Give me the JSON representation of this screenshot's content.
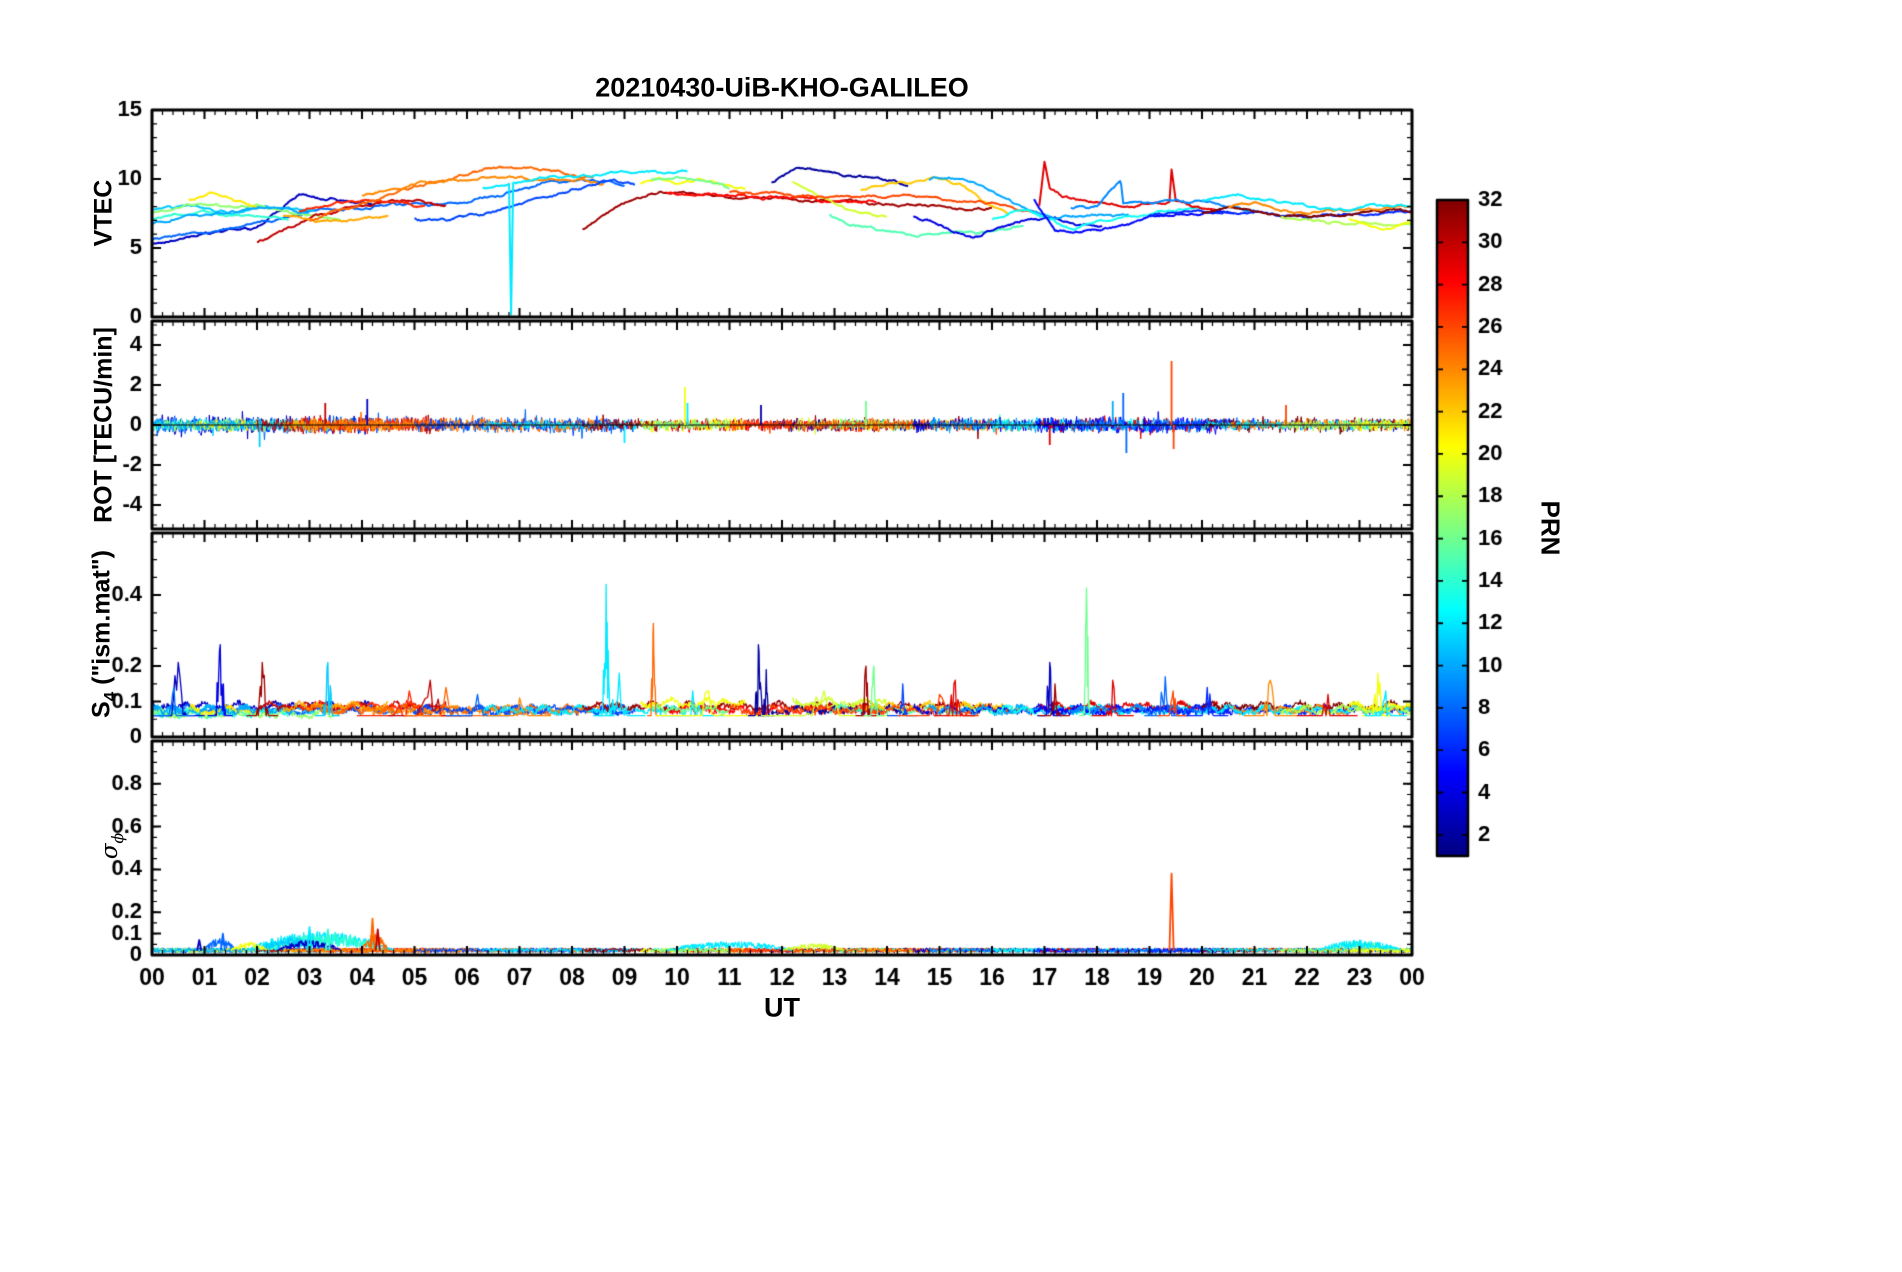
{
  "labels": {
    "s4_main": "S",
    "s4_sub": "4",
    "s4_rest": " (\"ism.mat\")",
    "sigma_main": "σ",
    "sigma_sub": "ϕ"
  },
  "chart_data": {
    "type": "line",
    "title": "20210430-UiB-KHO-GALILEO",
    "xlabel": "UT",
    "x_range_hours": [
      0,
      24
    ],
    "x_tick_labels": [
      "00",
      "01",
      "02",
      "03",
      "04",
      "05",
      "06",
      "07",
      "08",
      "09",
      "10",
      "11",
      "12",
      "13",
      "14",
      "15",
      "16",
      "17",
      "18",
      "19",
      "20",
      "21",
      "22",
      "23",
      "00"
    ],
    "colorbar": {
      "label": "PRN",
      "min": 1,
      "max": 32,
      "colormap": "jet",
      "ticks": [
        2,
        4,
        6,
        8,
        10,
        12,
        14,
        16,
        18,
        20,
        22,
        24,
        26,
        28,
        30,
        32
      ]
    },
    "panels": [
      {
        "id": "vtec",
        "ylabel": "VTEC",
        "ylim": [
          0,
          15
        ],
        "yticks": [
          0,
          5,
          10,
          15
        ],
        "yminor": 1
      },
      {
        "id": "rot",
        "ylabel": "ROT [TECU/min]",
        "ylim": [
          -5.2,
          5.2
        ],
        "yticks": [
          -4,
          -2,
          0,
          2,
          4
        ],
        "yminor": 0.5
      },
      {
        "id": "s4",
        "ylabel": "S4 (\"ism.mat\")",
        "ylim": [
          0,
          0.575
        ],
        "yticks": [
          0,
          0.1,
          0.2,
          0.4
        ],
        "yminor": 0.05
      },
      {
        "id": "sigma",
        "ylabel": "σϕ",
        "ylim": [
          0,
          1.0
        ],
        "yticks": [
          0,
          0.1,
          0.2,
          0.4,
          0.6,
          0.8
        ],
        "yminor": 0.05
      }
    ],
    "arcs": [
      {
        "prn": 3,
        "t": [
          0,
          1,
          2,
          2.8,
          3.5,
          4.2
        ],
        "v": [
          5.3,
          6.0,
          6.5,
          8.8,
          8.6,
          8.0
        ],
        "rot_amp": 0.45,
        "s4_base": 0.07
      },
      {
        "prn": 8,
        "t": [
          0,
          1.5,
          3,
          4.5,
          6,
          7.5,
          8.4,
          9
        ],
        "v": [
          5.6,
          6.4,
          7.6,
          8.1,
          8.3,
          9.7,
          10.0,
          9.4
        ],
        "rot_amp": 0.4,
        "s4_base": 0.06
      },
      {
        "prn": 11,
        "t": [
          0,
          0.7,
          1.5,
          2.3,
          3.1
        ],
        "v": [
          7.8,
          8.0,
          7.6,
          8.0,
          7.7
        ],
        "rot_amp": 0.3,
        "s4_base": 0.06
      },
      {
        "prn": 14,
        "t": [
          0,
          1,
          2,
          2.6
        ],
        "v": [
          7.2,
          7.6,
          7.3,
          7.0
        ],
        "rot_amp": 0.3,
        "s4_base": 0.05
      },
      {
        "prn": 17,
        "t": [
          0,
          1,
          2,
          3,
          3.6
        ],
        "v": [
          7.6,
          8.2,
          8.0,
          7.4,
          7.0
        ],
        "rot_amp": 0.3,
        "s4_base": 0.05
      },
      {
        "prn": 21,
        "t": [
          0.7,
          1.1,
          1.5,
          2.0
        ],
        "v": [
          8.5,
          9.0,
          8.5,
          8.0
        ],
        "rot_amp": 0.3,
        "s4_base": 0.06
      },
      {
        "prn": 10,
        "t": [
          0,
          0.8,
          1.6,
          2.4,
          3.0
        ],
        "v": [
          6.8,
          7.3,
          7.7,
          7.9,
          7.6
        ],
        "rot_amp": 0.3,
        "s4_base": 0.06
      },
      {
        "prn": 30,
        "t": [
          2,
          2.5,
          3,
          3.5,
          4,
          4.6,
          5.1,
          5.6
        ],
        "v": [
          5.4,
          6.2,
          7.3,
          7.6,
          8.0,
          8.6,
          8.3,
          8.0
        ],
        "rot_amp": 0.45,
        "s4_base": 0.07
      },
      {
        "prn": 27,
        "t": [
          2.8,
          3.4,
          4,
          4.6,
          5.2
        ],
        "v": [
          7.7,
          8.1,
          8.5,
          8.3,
          8.0
        ],
        "rot_amp": 0.4,
        "s4_base": 0.07
      },
      {
        "prn": 23,
        "t": [
          2.5,
          3,
          3.5,
          4,
          4.5
        ],
        "v": [
          7.4,
          7.1,
          6.9,
          7.2,
          7.4
        ],
        "rot_amp": 0.35,
        "s4_base": 0.07
      },
      {
        "prn": 25,
        "t": [
          3,
          4,
          5,
          5.8,
          6.5,
          7,
          7.7,
          8.4
        ],
        "v": [
          7.0,
          8.2,
          9.4,
          10.2,
          10.8,
          10.9,
          10.5,
          10.1
        ],
        "rot_amp": 0.35,
        "s4_base": 0.06
      },
      {
        "prn": 24,
        "t": [
          4,
          5,
          6,
          7,
          8,
          8.6
        ],
        "v": [
          8.8,
          9.6,
          10.0,
          10.1,
          9.9,
          9.7
        ],
        "rot_amp": 0.3,
        "s4_base": 0.06
      },
      {
        "prn": 7,
        "t": [
          5,
          5.6,
          6.2,
          6.8,
          7.4,
          8.1,
          8.8,
          9.2
        ],
        "v": [
          7.2,
          7.0,
          7.4,
          8.0,
          8.6,
          9.3,
          9.8,
          9.6
        ],
        "rot_amp": 0.3,
        "s4_base": 0.06
      },
      {
        "prn": 12,
        "t": [
          6.3,
          6.8,
          6.84,
          6.88,
          7.3,
          8,
          8.7,
          9.4,
          10.2
        ],
        "v": [
          9.2,
          9.7,
          0.2,
          9.7,
          10.0,
          10.2,
          10.4,
          10.5,
          10.5
        ],
        "rot_amp": 0.25,
        "s4_base": 0.06
      },
      {
        "prn": 31,
        "t": [
          8.2,
          8.7,
          9.2,
          9.7,
          10.3,
          11,
          12,
          13,
          14,
          15,
          16
        ],
        "v": [
          6.4,
          7.6,
          8.6,
          9.1,
          8.9,
          8.7,
          8.6,
          8.4,
          8.2,
          8.0,
          7.8
        ],
        "rot_amp": 0.3,
        "s4_base": 0.07
      },
      {
        "prn": 28,
        "t": [
          9.8,
          10.8,
          11.8,
          12.8,
          13.8
        ],
        "v": [
          9.0,
          8.8,
          8.7,
          8.5,
          8.3
        ],
        "rot_amp": 0.3,
        "s4_base": 0.06
      },
      {
        "prn": 20,
        "t": [
          9.3,
          9.7,
          10,
          10.4,
          10.8,
          11.3
        ],
        "v": [
          9.6,
          10.0,
          9.7,
          10.1,
          9.6,
          9.2
        ],
        "rot_amp": 0.35,
        "s4_base": 0.08
      },
      {
        "prn": 16,
        "t": [
          9.5,
          10,
          10.5,
          11
        ],
        "v": [
          9.9,
          10.2,
          9.8,
          9.4
        ],
        "rot_amp": 0.3,
        "s4_base": 0.06
      },
      {
        "prn": 2,
        "t": [
          11.8,
          12.3,
          12.7,
          13.2,
          13.8,
          14.4
        ],
        "v": [
          9.8,
          10.9,
          10.6,
          10.3,
          10.1,
          9.5
        ],
        "rot_amp": 0.3,
        "s4_base": 0.06
      },
      {
        "prn": 19,
        "t": [
          12.2,
          12.6,
          13,
          13.5,
          14
        ],
        "v": [
          9.7,
          9.0,
          8.3,
          7.5,
          7.2
        ],
        "rot_amp": 0.35,
        "s4_base": 0.08
      },
      {
        "prn": 15,
        "t": [
          12.9,
          13.4,
          14,
          14.7,
          15.4,
          16.1,
          16.6
        ],
        "v": [
          7.4,
          6.6,
          6.2,
          6.0,
          6.1,
          6.3,
          6.5
        ],
        "rot_amp": 0.3,
        "s4_base": 0.06
      },
      {
        "prn": 22,
        "t": [
          13.5,
          14,
          14.5,
          15,
          15.5,
          16,
          16.3
        ],
        "v": [
          9.1,
          9.6,
          9.9,
          10.0,
          9.4,
          8.0,
          7.6
        ],
        "rot_amp": 0.3,
        "s4_base": 0.07
      },
      {
        "prn": 26,
        "t": [
          11,
          12,
          13,
          14,
          15,
          16,
          16.8
        ],
        "v": [
          9.1,
          8.9,
          8.7,
          8.8,
          8.6,
          8.2,
          7.7
        ],
        "rot_amp": 0.3,
        "s4_base": 0.06
      },
      {
        "prn": 4,
        "t": [
          14.5,
          15,
          15.6,
          16.1,
          16.6,
          17.1,
          17.6,
          18.1
        ],
        "v": [
          7.3,
          6.6,
          5.8,
          6.3,
          7.0,
          7.3,
          6.6,
          6.5
        ],
        "rot_amp": 0.35,
        "s4_base": 0.06
      },
      {
        "prn": 10,
        "t": [
          14.8,
          15.3,
          15.8,
          16.3,
          16.8,
          17.3,
          18,
          18.6
        ],
        "v": [
          9.9,
          10.1,
          9.6,
          8.4,
          7.6,
          7.2,
          7.3,
          7.5
        ],
        "rot_amp": 0.35,
        "s4_base": 0.06
      },
      {
        "prn": 13,
        "t": [
          16,
          16.5,
          17,
          17.5,
          18,
          18.5,
          19,
          19.5,
          20
        ],
        "v": [
          7.1,
          7.7,
          7.3,
          6.4,
          6.9,
          7.2,
          7.5,
          7.7,
          7.8
        ],
        "rot_amp": 0.3,
        "s4_base": 0.06
      },
      {
        "prn": 29,
        "t": [
          16.9,
          17.0,
          17.1,
          17.5,
          18,
          18.5,
          19,
          19.38,
          19.42,
          19.5,
          20,
          20.3
        ],
        "v": [
          8.0,
          11.2,
          9.3,
          8.6,
          8.3,
          8.0,
          8.2,
          8.3,
          10.6,
          8.3,
          7.9,
          7.7
        ],
        "rot_amp": 0.35,
        "s4_base": 0.07
      },
      {
        "prn": 5,
        "t": [
          16.8,
          17.2,
          17.7,
          18.2,
          19,
          20,
          20.6
        ],
        "v": [
          8.6,
          6.3,
          6.1,
          6.4,
          7.2,
          7.6,
          7.5
        ],
        "rot_amp": 0.4,
        "s4_base": 0.06
      },
      {
        "prn": 9,
        "t": [
          17.5,
          18,
          18.45,
          18.5,
          19,
          19.5,
          20,
          20.5,
          21
        ],
        "v": [
          7.9,
          8.1,
          9.9,
          8.2,
          8.3,
          8.5,
          8.3,
          8.0,
          7.8
        ],
        "rot_amp": 0.35,
        "s4_base": 0.06
      },
      {
        "prn": 6,
        "t": [
          19,
          20,
          21,
          22,
          23,
          24
        ],
        "v": [
          7.4,
          7.7,
          7.5,
          7.3,
          7.5,
          7.6
        ],
        "rot_amp": 0.3,
        "s4_base": 0.06
      },
      {
        "prn": 32,
        "t": [
          20,
          20.5,
          21,
          21.5,
          22,
          22.5,
          23,
          23.5,
          24
        ],
        "v": [
          7.6,
          7.9,
          7.7,
          7.4,
          7.2,
          7.4,
          7.6,
          7.7,
          7.7
        ],
        "rot_amp": 0.35,
        "s4_base": 0.07
      },
      {
        "prn": 24,
        "t": [
          20.5,
          21,
          21.5,
          22,
          23,
          24
        ],
        "v": [
          8.0,
          8.2,
          7.8,
          7.5,
          7.8,
          8.0
        ],
        "rot_amp": 0.3,
        "s4_base": 0.06
      },
      {
        "prn": 12,
        "t": [
          20,
          20.7,
          21.3,
          22,
          22.7,
          23.3,
          24
        ],
        "v": [
          8.4,
          8.8,
          8.5,
          8.0,
          7.8,
          8.0,
          8.1
        ],
        "rot_amp": 0.25,
        "s4_base": 0.06
      },
      {
        "prn": 18,
        "t": [
          21.5,
          22,
          22.5,
          23,
          23.5,
          24
        ],
        "v": [
          7.3,
          7.0,
          6.8,
          6.9,
          6.6,
          6.7
        ],
        "rot_amp": 0.3,
        "s4_base": 0.06
      },
      {
        "prn": 20,
        "t": [
          22.8,
          23.2,
          23.6,
          24
        ],
        "v": [
          7.2,
          6.6,
          6.4,
          6.9
        ],
        "rot_amp": 0.3,
        "s4_base": 0.07
      }
    ],
    "rot_spikes": [
      {
        "t": 19.42,
        "prn": 26,
        "v": 3.2
      },
      {
        "t": 19.46,
        "prn": 26,
        "v": -1.2
      },
      {
        "t": 10.15,
        "prn": 20,
        "v": 1.9
      },
      {
        "t": 10.2,
        "prn": 12,
        "v": 1.1
      },
      {
        "t": 13.6,
        "prn": 16,
        "v": 1.2
      },
      {
        "t": 18.5,
        "prn": 8,
        "v": 1.6
      },
      {
        "t": 18.56,
        "prn": 8,
        "v": -1.4
      },
      {
        "t": 18.3,
        "prn": 10,
        "v": 1.2
      },
      {
        "t": 4.1,
        "prn": 3,
        "v": 1.3
      },
      {
        "t": 2.05,
        "prn": 11,
        "v": -1.1
      },
      {
        "t": 3.3,
        "prn": 30,
        "v": 1.1
      },
      {
        "t": 21.6,
        "prn": 26,
        "v": 1.0
      },
      {
        "t": 17.1,
        "prn": 29,
        "v": -1.0
      },
      {
        "t": 11.6,
        "prn": 2,
        "v": 1.0
      },
      {
        "t": 9.0,
        "prn": 12,
        "v": -0.9
      }
    ],
    "s4_spikes": [
      {
        "t": 0.5,
        "prn": 3,
        "v": 0.21,
        "w": 0.25
      },
      {
        "t": 0.42,
        "prn": 8,
        "v": 0.14,
        "w": 0.2
      },
      {
        "t": 1.3,
        "prn": 4,
        "v": 0.26,
        "w": 0.12
      },
      {
        "t": 2.1,
        "prn": 31,
        "v": 0.21,
        "w": 0.15
      },
      {
        "t": 3.35,
        "prn": 11,
        "v": 0.21,
        "w": 0.12
      },
      {
        "t": 4.9,
        "prn": 27,
        "v": 0.13,
        "w": 0.5
      },
      {
        "t": 5.3,
        "prn": 30,
        "v": 0.16,
        "w": 0.4
      },
      {
        "t": 5.6,
        "prn": 25,
        "v": 0.14,
        "w": 0.4
      },
      {
        "t": 6.2,
        "prn": 8,
        "v": 0.12,
        "w": 0.3
      },
      {
        "t": 7.0,
        "prn": 24,
        "v": 0.11,
        "w": 0.3
      },
      {
        "t": 8.65,
        "prn": 12,
        "v": 0.43,
        "w": 0.08
      },
      {
        "t": 8.9,
        "prn": 12,
        "v": 0.18,
        "w": 0.25
      },
      {
        "t": 9.55,
        "prn": 25,
        "v": 0.32,
        "w": 0.06
      },
      {
        "t": 10.3,
        "prn": 12,
        "v": 0.13,
        "w": 0.3
      },
      {
        "t": 10.6,
        "prn": 20,
        "v": 0.13,
        "w": 0.5
      },
      {
        "t": 11.55,
        "prn": 2,
        "v": 0.26,
        "w": 0.1
      },
      {
        "t": 11.7,
        "prn": 2,
        "v": 0.19,
        "w": 0.08
      },
      {
        "t": 12.8,
        "prn": 19,
        "v": 0.13,
        "w": 0.6
      },
      {
        "t": 13.6,
        "prn": 31,
        "v": 0.2,
        "w": 0.1
      },
      {
        "t": 13.75,
        "prn": 16,
        "v": 0.2,
        "w": 0.1
      },
      {
        "t": 14.3,
        "prn": 7,
        "v": 0.15,
        "w": 0.15
      },
      {
        "t": 15.0,
        "prn": 26,
        "v": 0.12,
        "w": 0.4
      },
      {
        "t": 15.3,
        "prn": 29,
        "v": 0.16,
        "w": 0.2
      },
      {
        "t": 17.1,
        "prn": 3,
        "v": 0.21,
        "w": 0.12
      },
      {
        "t": 17.2,
        "prn": 31,
        "v": 0.15,
        "w": 0.15
      },
      {
        "t": 17.8,
        "prn": 16,
        "v": 0.42,
        "w": 0.07
      },
      {
        "t": 18.3,
        "prn": 29,
        "v": 0.16,
        "w": 0.2
      },
      {
        "t": 19.3,
        "prn": 8,
        "v": 0.17,
        "w": 0.2
      },
      {
        "t": 19.45,
        "prn": 26,
        "v": 0.13,
        "w": 0.15
      },
      {
        "t": 20.1,
        "prn": 6,
        "v": 0.14,
        "w": 0.2
      },
      {
        "t": 21.3,
        "prn": 24,
        "v": 0.16,
        "w": 0.25
      },
      {
        "t": 22.4,
        "prn": 29,
        "v": 0.12,
        "w": 0.3
      },
      {
        "t": 23.35,
        "prn": 20,
        "v": 0.18,
        "w": 0.15
      },
      {
        "t": 23.5,
        "prn": 12,
        "v": 0.13,
        "w": 0.2
      }
    ],
    "sigma_events": [
      {
        "prn": 12,
        "t0": 1.8,
        "t1": 4.6,
        "amp": 0.09
      },
      {
        "prn": 14,
        "t0": 2.2,
        "t1": 4.4,
        "amp": 0.08
      },
      {
        "prn": 11,
        "t0": 2.0,
        "t1": 3.4,
        "amp": 0.06
      },
      {
        "prn": 3,
        "t0": 2.4,
        "t1": 3.6,
        "amp": 0.05
      },
      {
        "prn": 8,
        "t0": 1.0,
        "t1": 1.6,
        "amp": 0.06
      },
      {
        "prn": 20,
        "t0": 1.5,
        "t1": 2.2,
        "amp": 0.04
      },
      {
        "prn": 25,
        "t0": 4.0,
        "t1": 4.5,
        "amp": 0.08
      },
      {
        "prn": 12,
        "t0": 9.8,
        "t1": 12.2,
        "amp": 0.045
      },
      {
        "prn": 19,
        "t0": 12.0,
        "t1": 13.2,
        "amp": 0.035
      },
      {
        "prn": 16,
        "t0": 22.4,
        "t1": 23.6,
        "amp": 0.045
      },
      {
        "prn": 12,
        "t0": 22.2,
        "t1": 23.8,
        "amp": 0.05
      }
    ],
    "sigma_spikes": [
      {
        "t": 19.42,
        "prn": 26,
        "v": 0.38
      },
      {
        "t": 4.2,
        "prn": 25,
        "v": 0.17
      },
      {
        "t": 4.3,
        "prn": 30,
        "v": 0.12
      },
      {
        "t": 1.35,
        "prn": 8,
        "v": 0.1
      },
      {
        "t": 3.0,
        "prn": 12,
        "v": 0.13
      },
      {
        "t": 3.35,
        "prn": 14,
        "v": 0.12
      },
      {
        "t": 0.9,
        "prn": 3,
        "v": 0.07
      }
    ]
  }
}
